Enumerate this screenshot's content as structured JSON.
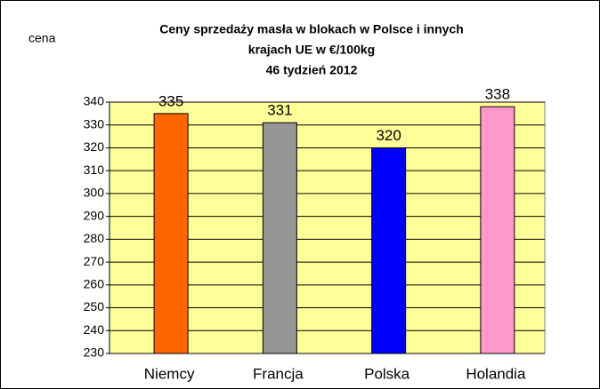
{
  "chart_data": {
    "type": "bar",
    "title": [
      "Ceny sprzedaży masła w blokach w Polsce i  innych",
      "krajach UE w €/100kg",
      "46 tydzień 2012"
    ],
    "ylabel": "cena",
    "categories": [
      "Niemcy",
      "Francja",
      "Polska",
      "Holandia"
    ],
    "values": [
      335,
      331,
      320,
      338
    ],
    "colors": [
      "#ff6600",
      "#969696",
      "#0000ff",
      "#ff99cc"
    ],
    "ylim": [
      230,
      340
    ],
    "yticks": [
      230,
      240,
      250,
      260,
      270,
      280,
      290,
      300,
      310,
      320,
      330,
      340
    ],
    "grid": true
  }
}
